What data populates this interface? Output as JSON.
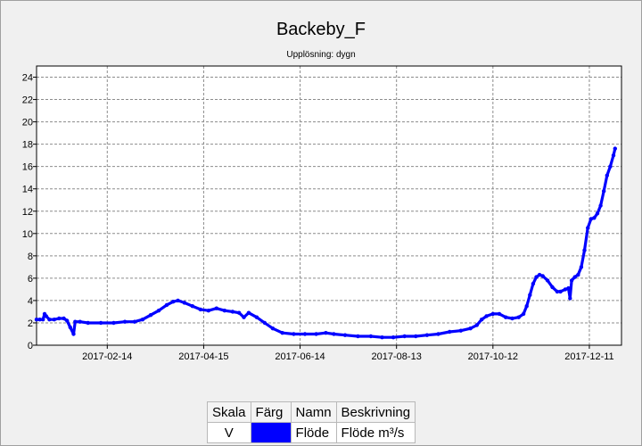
{
  "chart_data": {
    "type": "line",
    "title": "Backeby_F",
    "subtitle": "Upplösning: dygn",
    "xlabel": "",
    "ylabel": "",
    "x_range": [
      "2017-01-01",
      "2017-12-31"
    ],
    "ylim": [
      0,
      25
    ],
    "y_ticks": [
      0,
      2,
      4,
      6,
      8,
      10,
      12,
      14,
      16,
      18,
      20,
      22,
      24
    ],
    "x_ticks": [
      "2017-02-14",
      "2017-04-15",
      "2017-06-14",
      "2017-08-13",
      "2017-10-12",
      "2017-12-11"
    ],
    "grid": true,
    "series": [
      {
        "name": "Flöde",
        "color": "#0000ff",
        "points": [
          [
            "2017-01-01",
            2.3
          ],
          [
            "2017-01-03",
            2.3
          ],
          [
            "2017-01-05",
            2.3
          ],
          [
            "2017-01-06",
            2.8
          ],
          [
            "2017-01-07",
            2.6
          ],
          [
            "2017-01-09",
            2.3
          ],
          [
            "2017-01-12",
            2.3
          ],
          [
            "2017-01-15",
            2.4
          ],
          [
            "2017-01-18",
            2.4
          ],
          [
            "2017-01-20",
            2.2
          ],
          [
            "2017-01-22",
            1.6
          ],
          [
            "2017-01-24",
            1.0
          ],
          [
            "2017-01-25",
            2.1
          ],
          [
            "2017-01-28",
            2.1
          ],
          [
            "2017-02-02",
            2.0
          ],
          [
            "2017-02-10",
            2.0
          ],
          [
            "2017-02-18",
            2.0
          ],
          [
            "2017-02-25",
            2.1
          ],
          [
            "2017-03-03",
            2.1
          ],
          [
            "2017-03-08",
            2.3
          ],
          [
            "2017-03-13",
            2.7
          ],
          [
            "2017-03-18",
            3.1
          ],
          [
            "2017-03-23",
            3.6
          ],
          [
            "2017-03-27",
            3.9
          ],
          [
            "2017-03-30",
            4.0
          ],
          [
            "2017-04-03",
            3.8
          ],
          [
            "2017-04-08",
            3.5
          ],
          [
            "2017-04-13",
            3.2
          ],
          [
            "2017-04-18",
            3.1
          ],
          [
            "2017-04-23",
            3.3
          ],
          [
            "2017-04-28",
            3.1
          ],
          [
            "2017-05-03",
            3.0
          ],
          [
            "2017-05-07",
            2.9
          ],
          [
            "2017-05-10",
            2.5
          ],
          [
            "2017-05-13",
            2.9
          ],
          [
            "2017-05-18",
            2.5
          ],
          [
            "2017-05-23",
            2.0
          ],
          [
            "2017-05-28",
            1.5
          ],
          [
            "2017-06-03",
            1.1
          ],
          [
            "2017-06-10",
            1.0
          ],
          [
            "2017-06-17",
            1.0
          ],
          [
            "2017-06-24",
            1.0
          ],
          [
            "2017-06-30",
            1.1
          ],
          [
            "2017-07-05",
            1.0
          ],
          [
            "2017-07-12",
            0.9
          ],
          [
            "2017-07-20",
            0.8
          ],
          [
            "2017-07-28",
            0.8
          ],
          [
            "2017-08-04",
            0.7
          ],
          [
            "2017-08-11",
            0.7
          ],
          [
            "2017-08-18",
            0.8
          ],
          [
            "2017-08-25",
            0.8
          ],
          [
            "2017-09-01",
            0.9
          ],
          [
            "2017-09-08",
            1.0
          ],
          [
            "2017-09-15",
            1.2
          ],
          [
            "2017-09-22",
            1.3
          ],
          [
            "2017-09-28",
            1.5
          ],
          [
            "2017-10-02",
            1.8
          ],
          [
            "2017-10-05",
            2.3
          ],
          [
            "2017-10-08",
            2.6
          ],
          [
            "2017-10-12",
            2.8
          ],
          [
            "2017-10-16",
            2.8
          ],
          [
            "2017-10-20",
            2.5
          ],
          [
            "2017-10-24",
            2.4
          ],
          [
            "2017-10-28",
            2.5
          ],
          [
            "2017-10-31",
            2.8
          ],
          [
            "2017-11-02",
            3.5
          ],
          [
            "2017-11-04",
            4.5
          ],
          [
            "2017-11-06",
            5.5
          ],
          [
            "2017-11-08",
            6.1
          ],
          [
            "2017-11-10",
            6.3
          ],
          [
            "2017-11-12",
            6.2
          ],
          [
            "2017-11-15",
            5.8
          ],
          [
            "2017-11-18",
            5.2
          ],
          [
            "2017-11-21",
            4.8
          ],
          [
            "2017-11-23",
            4.8
          ],
          [
            "2017-11-26",
            5.0
          ],
          [
            "2017-11-28",
            5.1
          ],
          [
            "2017-11-29",
            4.2
          ],
          [
            "2017-11-30",
            5.8
          ],
          [
            "2017-12-02",
            6.1
          ],
          [
            "2017-12-04",
            6.3
          ],
          [
            "2017-12-06",
            7.0
          ],
          [
            "2017-12-08",
            8.5
          ],
          [
            "2017-12-10",
            10.5
          ],
          [
            "2017-12-12",
            11.3
          ],
          [
            "2017-12-14",
            11.4
          ],
          [
            "2017-12-16",
            11.8
          ],
          [
            "2017-12-18",
            12.5
          ],
          [
            "2017-12-20",
            13.8
          ],
          [
            "2017-12-22",
            15.2
          ],
          [
            "2017-12-24",
            16.0
          ],
          [
            "2017-12-26",
            17.0
          ],
          [
            "2017-12-27",
            17.6
          ]
        ]
      }
    ]
  },
  "legend": {
    "headers": [
      "Skala",
      "Färg",
      "Namn",
      "Beskrivning"
    ],
    "rows": [
      {
        "scale": "V",
        "color": "#0000ff",
        "name": "Flöde",
        "description": "Flöde m³/s"
      }
    ]
  }
}
